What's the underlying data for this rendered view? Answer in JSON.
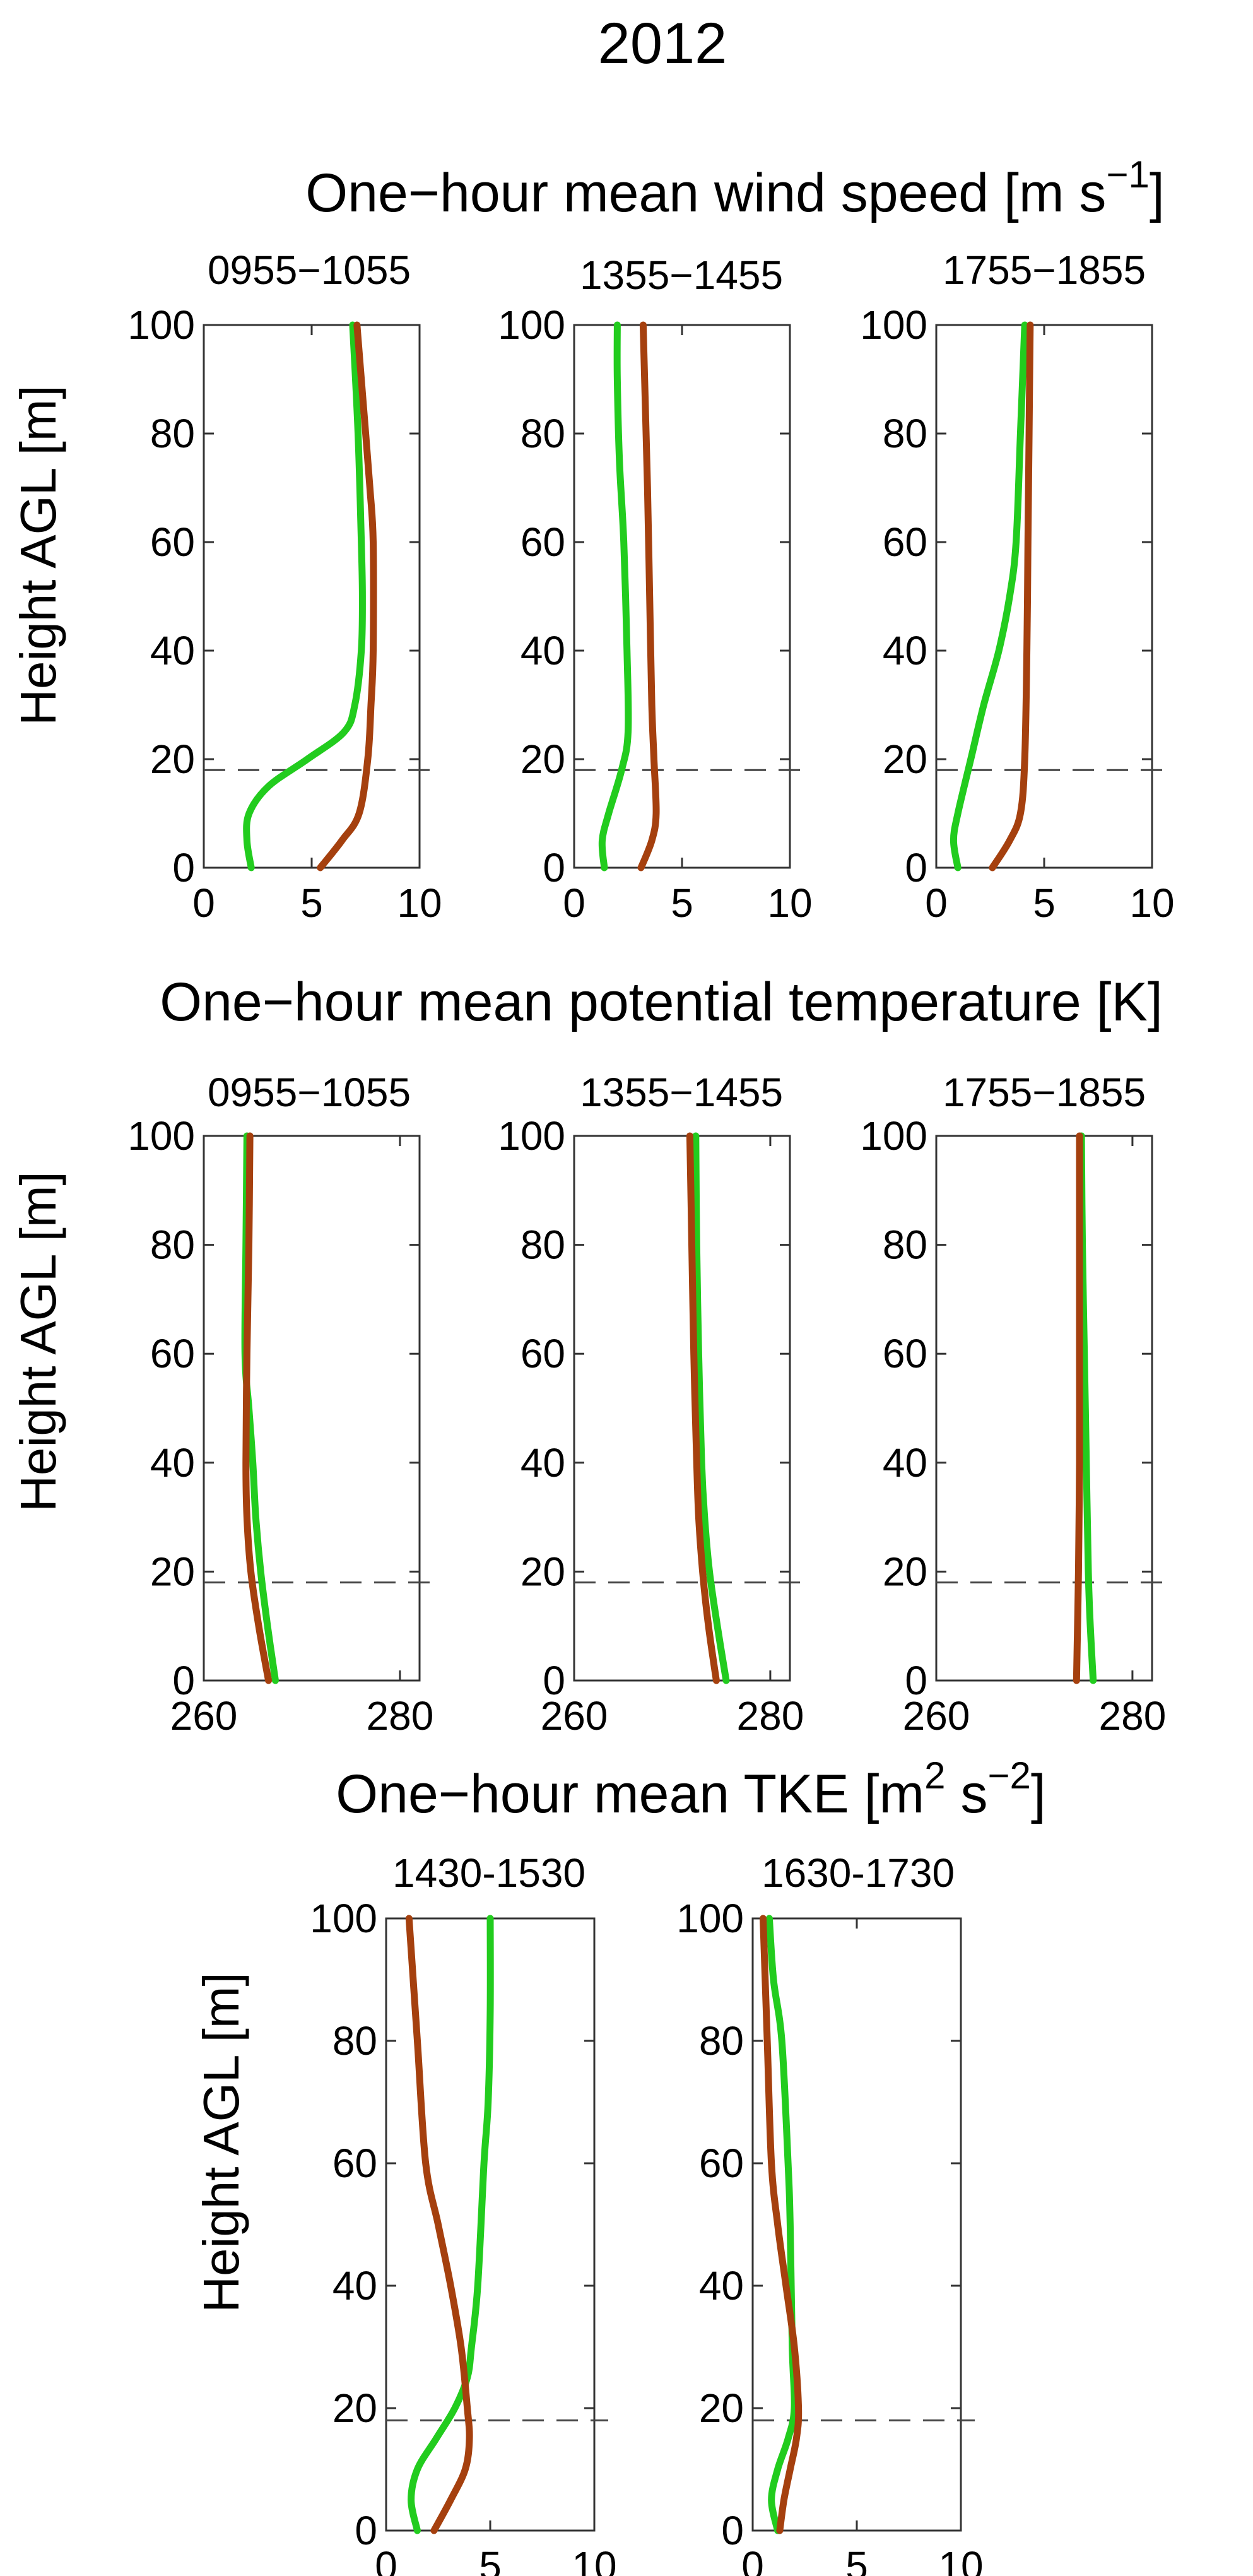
{
  "figure": {
    "title": "2012",
    "ylabel": "Height AGL [m]"
  },
  "colors": {
    "green": "#22cc1e",
    "brown": "#a5400e",
    "axis": "#333333",
    "ref_line": "#444444"
  },
  "rows": [
    {
      "title_main": "One−hour mean wind speed [m s",
      "title_sup": "−1",
      "title_end": "]"
    },
    {
      "title_main": "One−hour mean potential temperature [K]",
      "title_sup": "",
      "title_end": ""
    },
    {
      "title_main": "One−hour mean TKE [m",
      "title_sup": "2",
      "title_mid": " s",
      "title_sup2": "−2",
      "title_end": "]"
    }
  ],
  "chart_data": [
    {
      "type": "line",
      "row": 0,
      "panel_title": "0955−1055",
      "xlim": [
        0,
        10
      ],
      "ylim": [
        0,
        100
      ],
      "xticks": [
        0,
        5,
        10
      ],
      "xtick_labels": [
        "0",
        "5",
        "10"
      ],
      "yticks": [
        0,
        20,
        40,
        60,
        80,
        100
      ],
      "ytick_labels": [
        "0",
        "20",
        "40",
        "60",
        "80",
        "100"
      ],
      "ref_height": 18,
      "series": [
        {
          "name": "green",
          "x": [
            2.2,
            2.0,
            2.1,
            3.0,
            4.8,
            6.5,
            7.0,
            7.3,
            7.35,
            7.3,
            7.15,
            6.9
          ],
          "y": [
            0,
            5,
            10,
            15,
            20,
            25,
            30,
            40,
            50,
            60,
            80,
            100
          ]
        },
        {
          "name": "brown",
          "x": [
            5.4,
            6.4,
            7.2,
            7.6,
            7.75,
            7.85,
            7.85,
            7.7,
            7.4,
            7.1
          ],
          "y": [
            0,
            5,
            10,
            20,
            30,
            40,
            60,
            70,
            85,
            100
          ]
        }
      ]
    },
    {
      "type": "line",
      "row": 0,
      "panel_title": "1355−1455",
      "xlim": [
        0,
        10
      ],
      "ylim": [
        0,
        100
      ],
      "xticks": [
        0,
        5,
        10
      ],
      "xtick_labels": [
        "0",
        "5",
        "10"
      ],
      "yticks": [
        0,
        20,
        40,
        60,
        80,
        100
      ],
      "ytick_labels": [
        "0",
        "20",
        "40",
        "60",
        "80",
        "100"
      ],
      "ref_height": 18,
      "series": [
        {
          "name": "green",
          "x": [
            1.4,
            1.3,
            1.6,
            2.2,
            2.5,
            2.45,
            2.3,
            2.1,
            2.0,
            2.0
          ],
          "y": [
            0,
            5,
            10,
            18,
            25,
            40,
            60,
            75,
            90,
            100
          ]
        },
        {
          "name": "brown",
          "x": [
            3.1,
            3.6,
            3.8,
            3.7,
            3.6,
            3.5,
            3.4,
            3.3,
            3.2
          ],
          "y": [
            0,
            5,
            10,
            20,
            30,
            50,
            70,
            85,
            100
          ]
        }
      ]
    },
    {
      "type": "line",
      "row": 0,
      "panel_title": "1755−1855",
      "xlim": [
        0,
        10
      ],
      "ylim": [
        0,
        100
      ],
      "xticks": [
        0,
        5,
        10
      ],
      "xtick_labels": [
        "0",
        "5",
        "10"
      ],
      "yticks": [
        0,
        20,
        40,
        60,
        80,
        100
      ],
      "ytick_labels": [
        "0",
        "20",
        "40",
        "60",
        "80",
        "100"
      ],
      "ref_height": 18,
      "series": [
        {
          "name": "green",
          "x": [
            1.0,
            0.8,
            1.0,
            1.6,
            2.2,
            2.9,
            3.4,
            3.7,
            3.9,
            4.1
          ],
          "y": [
            0,
            5,
            10,
            20,
            30,
            40,
            50,
            60,
            80,
            100
          ]
        },
        {
          "name": "brown",
          "x": [
            2.6,
            3.4,
            3.9,
            4.1,
            4.2,
            4.25,
            4.3,
            4.35
          ],
          "y": [
            0,
            5,
            10,
            20,
            40,
            60,
            80,
            100
          ]
        }
      ]
    },
    {
      "type": "line",
      "row": 1,
      "panel_title": "0955−1055",
      "xlim": [
        260,
        282
      ],
      "ylim": [
        0,
        100
      ],
      "xticks": [
        260,
        280
      ],
      "xtick_labels": [
        "260",
        "280"
      ],
      "yticks": [
        0,
        20,
        40,
        60,
        80,
        100
      ],
      "ytick_labels": [
        "0",
        "20",
        "40",
        "60",
        "80",
        "100"
      ],
      "ref_height": 18,
      "series": [
        {
          "name": "green",
          "x": [
            267.3,
            266.5,
            265.8,
            265.3,
            265.0,
            264.6,
            264.2,
            264.3,
            264.4
          ],
          "y": [
            0,
            10,
            20,
            30,
            40,
            50,
            60,
            80,
            100
          ]
        },
        {
          "name": "brown",
          "x": [
            266.6,
            265.6,
            264.8,
            264.4,
            264.3,
            264.4,
            264.6,
            264.7
          ],
          "y": [
            0,
            10,
            20,
            30,
            40,
            60,
            80,
            100
          ]
        }
      ]
    },
    {
      "type": "line",
      "row": 1,
      "panel_title": "1355−1455",
      "xlim": [
        260,
        282
      ],
      "ylim": [
        0,
        100
      ],
      "xticks": [
        260,
        280
      ],
      "xtick_labels": [
        "260",
        "280"
      ],
      "yticks": [
        0,
        20,
        40,
        60,
        80,
        100
      ],
      "ytick_labels": [
        "0",
        "20",
        "40",
        "60",
        "80",
        "100"
      ],
      "ref_height": 18,
      "series": [
        {
          "name": "green",
          "x": [
            275.5,
            274.6,
            273.8,
            273.3,
            273.0,
            272.7,
            272.5,
            272.4
          ],
          "y": [
            0,
            10,
            20,
            30,
            40,
            60,
            80,
            100
          ]
        },
        {
          "name": "brown",
          "x": [
            274.5,
            273.7,
            273.1,
            272.7,
            272.5,
            272.2,
            272.0,
            271.8
          ],
          "y": [
            0,
            10,
            20,
            30,
            40,
            60,
            80,
            100
          ]
        }
      ]
    },
    {
      "type": "line",
      "row": 1,
      "panel_title": "1755−1855",
      "xlim": [
        260,
        282
      ],
      "ylim": [
        0,
        100
      ],
      "xticks": [
        260,
        280
      ],
      "xtick_labels": [
        "260",
        "280"
      ],
      "yticks": [
        0,
        20,
        40,
        60,
        80,
        100
      ],
      "ytick_labels": [
        "0",
        "20",
        "40",
        "60",
        "80",
        "100"
      ],
      "ref_height": 18,
      "series": [
        {
          "name": "green",
          "x": [
            276.0,
            275.7,
            275.5,
            275.3,
            275.1,
            274.9,
            274.8
          ],
          "y": [
            0,
            10,
            20,
            40,
            60,
            80,
            100
          ]
        },
        {
          "name": "brown",
          "x": [
            274.3,
            274.4,
            274.5,
            274.6,
            274.6,
            274.6,
            274.6
          ],
          "y": [
            0,
            10,
            20,
            40,
            60,
            80,
            100
          ]
        }
      ]
    },
    {
      "type": "line",
      "row": 2,
      "panel_title": "1430-1530",
      "xlim": [
        0,
        10
      ],
      "ylim": [
        0,
        100
      ],
      "xticks": [
        0,
        5,
        10
      ],
      "xtick_labels": [
        "0",
        "5",
        "10"
      ],
      "yticks": [
        0,
        20,
        40,
        60,
        80,
        100
      ],
      "ytick_labels": [
        "0",
        "20",
        "40",
        "60",
        "80",
        "100"
      ],
      "ref_height": 18,
      "series": [
        {
          "name": "green",
          "x": [
            1.5,
            1.2,
            1.5,
            2.4,
            3.3,
            3.9,
            4.1,
            4.4,
            4.7,
            4.9,
            5.0,
            5.0
          ],
          "y": [
            0,
            5,
            10,
            15,
            20,
            25,
            30,
            40,
            60,
            70,
            85,
            100
          ]
        },
        {
          "name": "brown",
          "x": [
            2.3,
            3.1,
            3.8,
            4.0,
            3.9,
            3.6,
            3.1,
            2.5,
            1.9,
            1.5,
            1.1
          ],
          "y": [
            0,
            5,
            10,
            15,
            20,
            30,
            40,
            50,
            60,
            80,
            100
          ]
        }
      ]
    },
    {
      "type": "line",
      "row": 2,
      "panel_title": "1630-1730",
      "xlim": [
        0,
        10
      ],
      "ylim": [
        0,
        100
      ],
      "xticks": [
        0,
        5,
        10
      ],
      "xtick_labels": [
        "0",
        "5",
        "10"
      ],
      "yticks": [
        0,
        20,
        40,
        60,
        80,
        100
      ],
      "ytick_labels": [
        "0",
        "20",
        "40",
        "60",
        "80",
        "100"
      ],
      "ref_height": 18,
      "series": [
        {
          "name": "green",
          "x": [
            1.2,
            0.9,
            1.2,
            1.7,
            2.0,
            1.9,
            1.8,
            1.7,
            1.4,
            1.0,
            0.8
          ],
          "y": [
            0,
            5,
            10,
            15,
            20,
            30,
            50,
            60,
            80,
            90,
            100
          ]
        },
        {
          "name": "brown",
          "x": [
            1.3,
            1.5,
            1.8,
            2.1,
            2.2,
            2.0,
            1.6,
            1.2,
            0.9,
            0.7,
            0.5
          ],
          "y": [
            0,
            5,
            10,
            15,
            20,
            30,
            40,
            50,
            60,
            80,
            100
          ]
        }
      ]
    }
  ]
}
